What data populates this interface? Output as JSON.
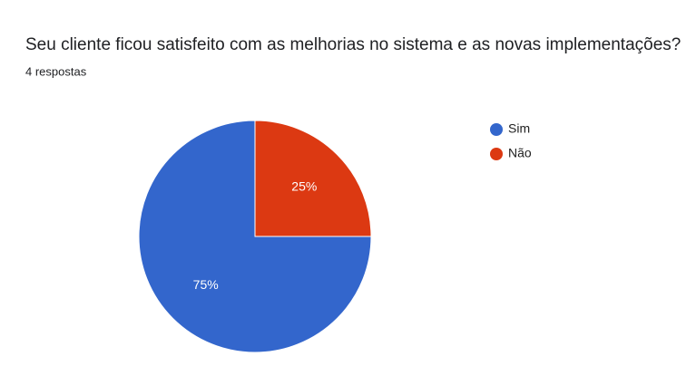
{
  "chart_data": {
    "type": "pie",
    "title": "Seu cliente ficou satisfeito com as melhorias no sistema e as novas implementações?",
    "subtitle": "4 respostas",
    "categories": [
      "Sim",
      "Não"
    ],
    "values": [
      75,
      25
    ],
    "value_labels": [
      "75%",
      "25%"
    ],
    "colors": [
      "#3366cc",
      "#dc3912"
    ]
  }
}
